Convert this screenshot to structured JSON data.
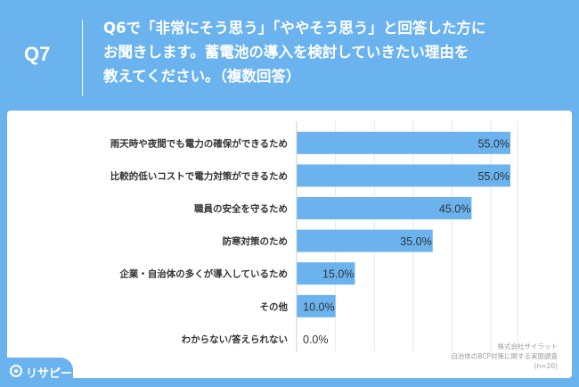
{
  "header": {
    "question_number": "Q7",
    "question_lines": [
      "Q6で「非常にそう思う」「ややそう思う」と回答した方に",
      "お聞きします。蓄電池の導入を検討していきたい理由を",
      "教えてください。（複数回答）"
    ]
  },
  "chart_data": {
    "type": "bar",
    "orientation": "horizontal",
    "categories": [
      "雨天時や夜間でも電力の確保ができるため",
      "比較的低いコストで電力対策ができるため",
      "職員の安全を守るため",
      "防寒対策のため",
      "企業・自治体の多くが導入しているため",
      "その他",
      "わからない/答えられない"
    ],
    "values": [
      55.0,
      55.0,
      45.0,
      35.0,
      15.0,
      10.0,
      0.0
    ],
    "value_labels": [
      "55.0%",
      "55.0%",
      "45.0%",
      "35.0%",
      "15.0%",
      "10.0%",
      "0.0%"
    ],
    "xlim": [
      0,
      55
    ],
    "grid": true,
    "bar_color": "#6bb3ee",
    "grid_color": "#e6e6e6"
  },
  "footer": {
    "source_lines": [
      "株式会社サイラット",
      "自治体のBCP対策に関する実態調査",
      "(n=20)"
    ]
  },
  "brand": {
    "logo_text": "リサピー",
    "logo_icon": "search-icon",
    "background_color": "#6bb3ee"
  }
}
